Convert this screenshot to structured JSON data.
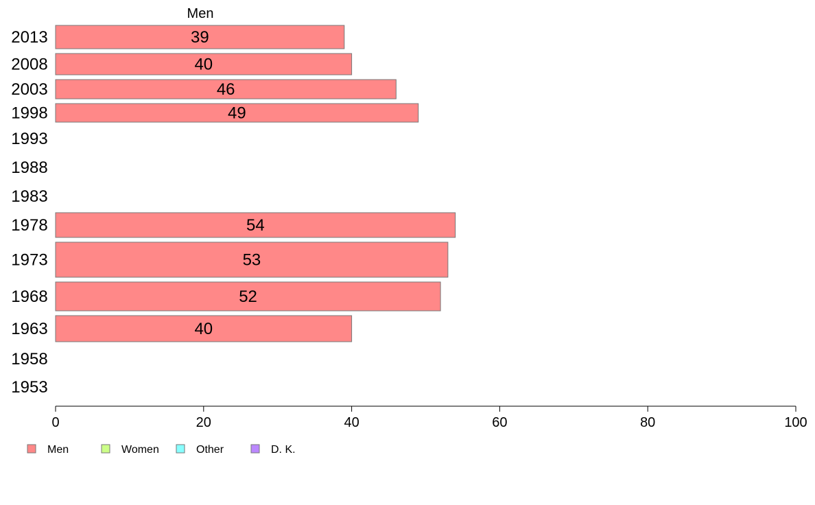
{
  "chart_data": {
    "type": "bar",
    "orientation": "horizontal",
    "title": "Men",
    "xlim": [
      0,
      100
    ],
    "xticks": [
      0,
      20,
      40,
      60,
      80,
      100
    ],
    "categories": [
      "2013",
      "2008",
      "2003",
      "1998",
      "1993",
      "1988",
      "1983",
      "1978",
      "1973",
      "1968",
      "1963",
      "1958",
      "1953"
    ],
    "series": [
      {
        "name": "Men",
        "color": "#ff8888",
        "values": [
          39,
          40,
          46,
          49,
          null,
          null,
          null,
          54,
          53,
          52,
          40,
          null,
          null
        ],
        "labels": [
          "39",
          "40",
          "46",
          "49",
          "",
          "",
          "",
          "54",
          "53",
          "52",
          "40",
          "",
          ""
        ]
      }
    ],
    "legend": {
      "placement": "bottom-left",
      "items": [
        {
          "label": "Men",
          "color": "#ff8888"
        },
        {
          "label": "Women",
          "color": "#ccff88"
        },
        {
          "label": "Other",
          "color": "#88ffff"
        },
        {
          "label": "D. K.",
          "color": "#bb88ff"
        }
      ]
    },
    "grid": false
  }
}
